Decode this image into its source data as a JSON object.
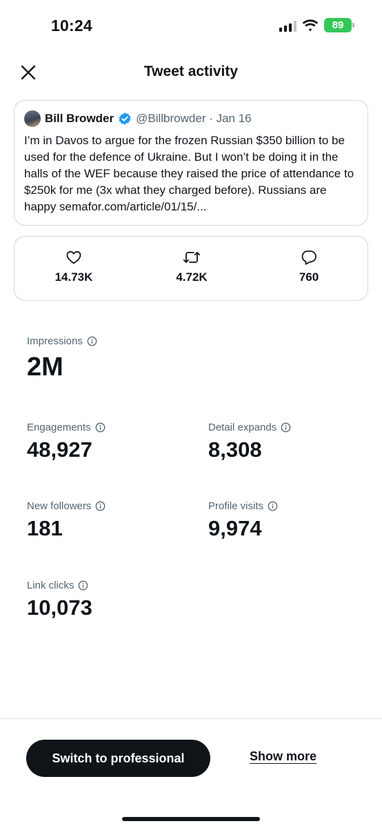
{
  "status_bar": {
    "time": "10:24",
    "battery": "89",
    "icons": [
      "cellular-signal-icon",
      "wifi-icon",
      "battery-charging-icon"
    ]
  },
  "header": {
    "title": "Tweet activity",
    "close_icon": "close-icon"
  },
  "tweet": {
    "author_name": "Bill Browder",
    "verified_icon": "verified-badge-icon",
    "meta": "@Billbrowder · Jan 16",
    "text": "I’m in Davos to argue for the frozen Russian $350 billion to be used for the defence of Ukraine. But I won’t be doing it in the halls of the WEF because they raised the price of attendance to $250k for me (3x what they charged before). Russians are happy semafor.com/article/01/15/..."
  },
  "engagement": {
    "likes": {
      "icon": "heart-icon",
      "count": "14.73K"
    },
    "retweets": {
      "icon": "retweet-icon",
      "count": "4.72K"
    },
    "replies": {
      "icon": "reply-icon",
      "count": "760"
    }
  },
  "metrics": {
    "impressions": {
      "label": "Impressions",
      "value": "2M"
    },
    "engagements": {
      "label": "Engagements",
      "value": "48,927"
    },
    "detail_expands": {
      "label": "Detail expands",
      "value": "8,308"
    },
    "new_followers": {
      "label": "New followers",
      "value": "181"
    },
    "profile_visits": {
      "label": "Profile visits",
      "value": "9,974"
    },
    "link_clicks": {
      "label": "Link clicks",
      "value": "10,073"
    }
  },
  "footer": {
    "switch_label": "Switch to professional",
    "show_more_label": "Show more"
  },
  "colors": {
    "text": "#0f1419",
    "secondary_text": "#536471",
    "border": "#cfd9de",
    "verified": "#1d9bf0",
    "battery": "#34c759"
  }
}
